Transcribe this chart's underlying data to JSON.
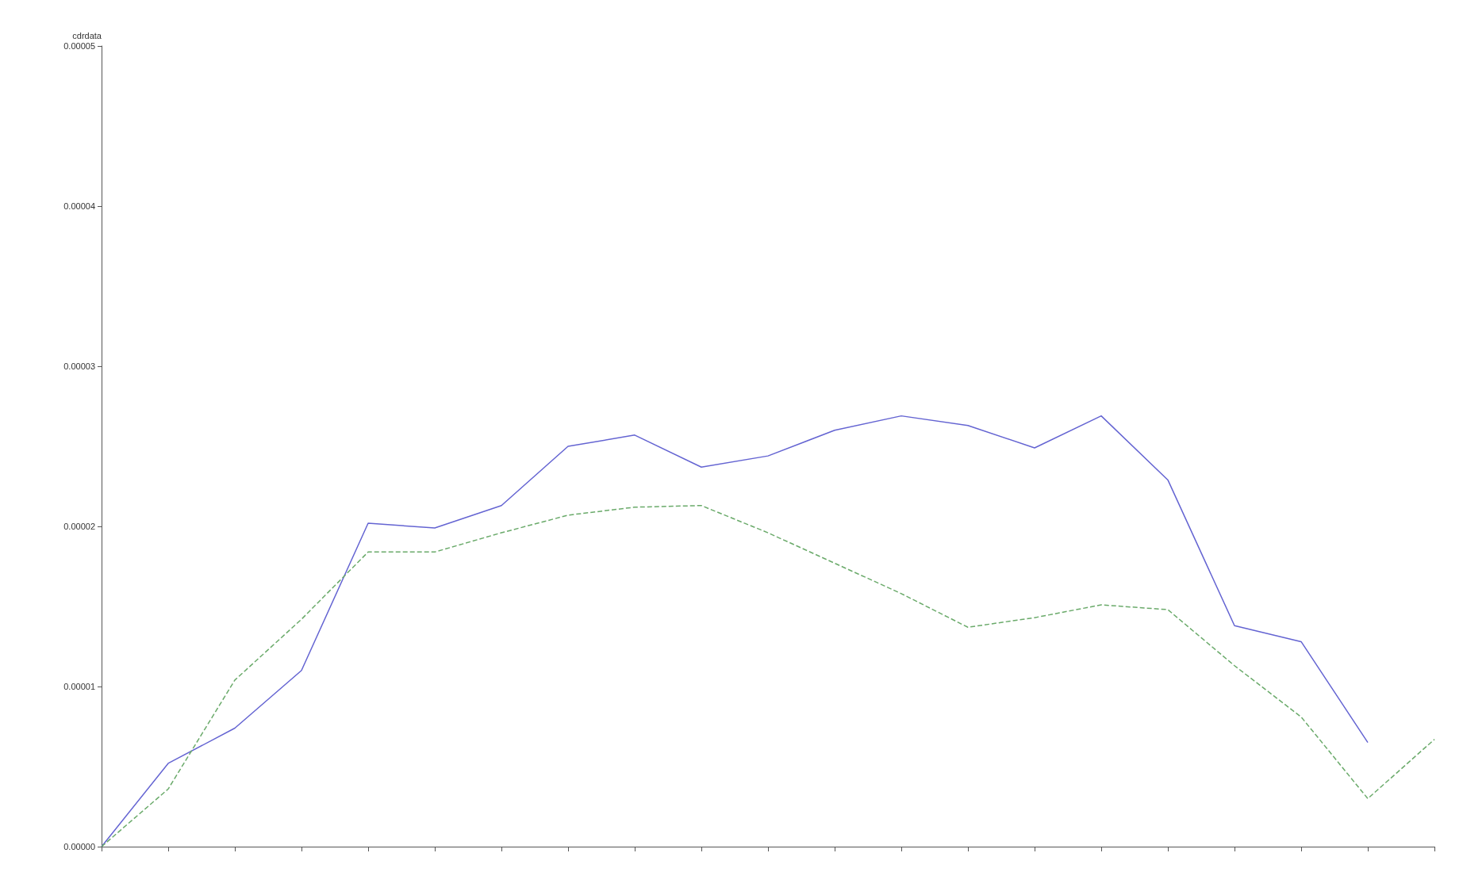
{
  "chart_data": {
    "type": "line",
    "ylabel": "cdrdata",
    "categories": [
      null,
      null,
      null,
      null,
      null,
      null,
      null,
      null,
      null,
      null,
      null,
      null,
      null,
      null,
      null,
      null,
      null,
      null,
      null,
      null,
      null
    ],
    "ylim": [
      0,
      5e-05
    ],
    "yticks": [
      {
        "value": 0,
        "label": "0.00000"
      },
      {
        "value": 1e-05,
        "label": "0.00001"
      },
      {
        "value": 2e-05,
        "label": "0.00002"
      },
      {
        "value": 3e-05,
        "label": "0.00003"
      },
      {
        "value": 4e-05,
        "label": "0.00004"
      },
      {
        "value": 5e-05,
        "label": "0.00005"
      }
    ],
    "grid": false,
    "marker": "none",
    "series": [
      {
        "color": "#6464d2",
        "line_style": "solid",
        "values": [
          0,
          5.2e-06,
          7.4e-06,
          1.1e-05,
          2.02e-05,
          1.99e-05,
          2.13e-05,
          2.5e-05,
          2.57e-05,
          2.37e-05,
          2.44e-05,
          2.6e-05,
          2.69e-05,
          2.63e-05,
          2.49e-05,
          2.69e-05,
          2.29e-05,
          1.38e-05,
          1.28e-05,
          6.5e-06,
          null
        ]
      },
      {
        "color": "#6aaa6a",
        "line_style": "dashed",
        "values": [
          0,
          3.6e-06,
          1.04e-05,
          1.42e-05,
          1.84e-05,
          1.84e-05,
          1.96e-05,
          2.07e-05,
          2.12e-05,
          2.13e-05,
          1.96e-05,
          1.77e-05,
          1.58e-05,
          1.37e-05,
          1.43e-05,
          1.51e-05,
          1.48e-05,
          1.13e-05,
          8.1e-06,
          3e-06,
          6.7e-06
        ]
      }
    ]
  }
}
